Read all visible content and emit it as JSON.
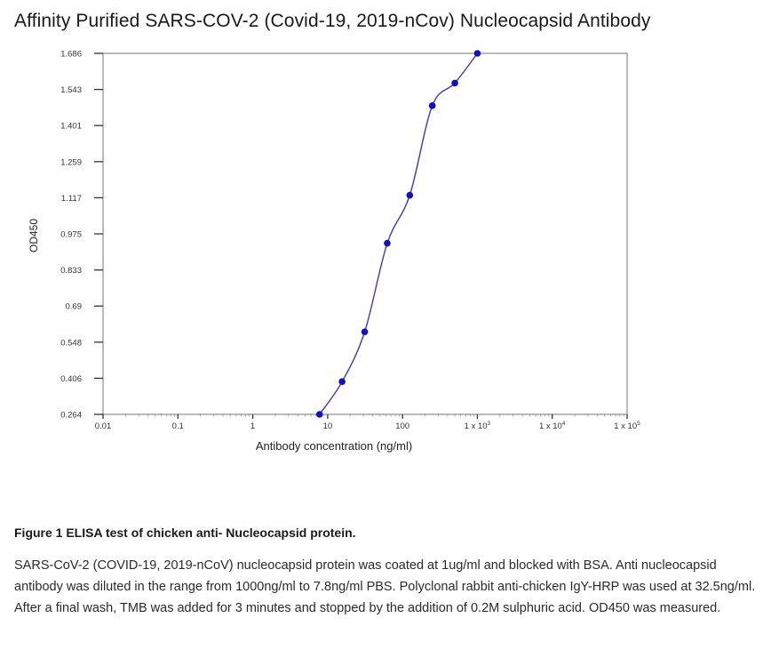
{
  "page": {
    "title": "Affinity Purified SARS-COV-2 (Covid-19, 2019-nCov) Nucleocapsid Antibody"
  },
  "chart_data": {
    "type": "scatter",
    "x_scale": "log",
    "xlabel": "Antibody concentration (ng/ml)",
    "ylabel": "OD450",
    "xlim": [
      0.01,
      100000
    ],
    "ylim": [
      0.264,
      1.686
    ],
    "x_ticks": [
      {
        "value": 0.01,
        "label": "0.01"
      },
      {
        "value": 0.1,
        "label": "0.1"
      },
      {
        "value": 1,
        "label": "1"
      },
      {
        "value": 10,
        "label": "10"
      },
      {
        "value": 100,
        "label": "100"
      },
      {
        "value": 1000,
        "label": "1 x 10",
        "sup": "3"
      },
      {
        "value": 10000,
        "label": "1 x 10",
        "sup": "4"
      },
      {
        "value": 100000,
        "label": "1 x 10",
        "sup": "5"
      }
    ],
    "y_ticks": [
      "0.264",
      "0.406",
      "0.548",
      "0.69",
      "0.833",
      "0.975",
      "1.117",
      "1.259",
      "1.401",
      "1.543",
      "1.686"
    ],
    "series": [
      {
        "x": [
          7.8,
          15.6,
          31.25,
          62.5,
          125,
          250,
          500,
          1000
        ],
        "y": [
          0.264,
          0.393,
          0.589,
          0.938,
          1.127,
          1.48,
          1.569,
          1.686
        ]
      }
    ],
    "marker_color": "#1010c8",
    "line_color": "#3b3bb0",
    "grid": false
  },
  "caption": {
    "title": "Figure 1 ELISA test of chicken anti- Nucleocapsid protein.",
    "body": "SARS-CoV-2 (COVID-19, 2019-nCoV) nucleocapsid protein was coated at 1ug/ml and blocked with BSA. Anti nucleocapsid antibody was diluted in the range from 1000ng/ml to 7.8ng/ml PBS. Polyclonal rabbit anti-chicken IgY-HRP was used at 32.5ng/ml. After a final wash, TMB was added for 3 minutes and stopped by the addition of 0.2M sulphuric acid. OD450 was measured."
  }
}
